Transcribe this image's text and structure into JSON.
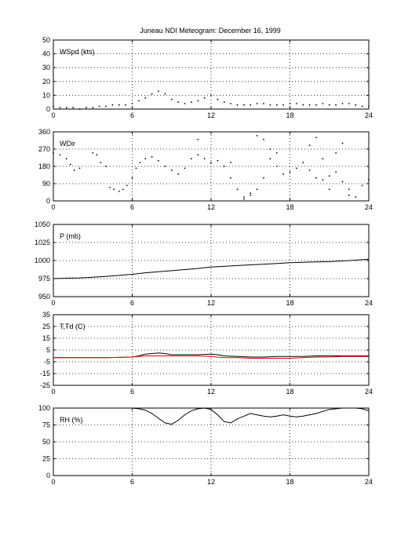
{
  "figure": {
    "title": "Juneau NDI Meteogram:  December 16, 1999"
  },
  "chart_data": [
    {
      "type": "line",
      "label": "WSpd (kts)",
      "x_ticks": [
        0,
        6,
        12,
        18,
        24
      ],
      "y_ticks": [
        0,
        10,
        20,
        30,
        40,
        50
      ],
      "xlim": [
        0,
        24
      ],
      "ylim": [
        0,
        50
      ],
      "grid": true,
      "series": [
        {
          "color": "#000000",
          "style": "dots",
          "x": [
            0,
            0.5,
            1,
            1.5,
            2,
            2.5,
            3,
            3.5,
            4,
            4.5,
            5,
            5.5,
            6,
            6.5,
            7,
            7.5,
            8,
            8.5,
            9,
            9.5,
            10,
            10.5,
            11,
            11.5,
            12,
            12.5,
            13,
            13.5,
            14,
            14.5,
            15,
            15.5,
            16,
            16.5,
            17,
            17.5,
            18,
            18.5,
            19,
            19.5,
            20,
            20.5,
            21,
            21.5,
            22,
            22.5,
            23,
            23.5,
            24
          ],
          "y": [
            2,
            1,
            1,
            1,
            0,
            1,
            1,
            2,
            2,
            3,
            3,
            3,
            4,
            6,
            8,
            11,
            13,
            11,
            7,
            5,
            4,
            5,
            6,
            8,
            10,
            7,
            5,
            4,
            3,
            3,
            3,
            4,
            4,
            3,
            3,
            3,
            4,
            4,
            3,
            3,
            3,
            4,
            3,
            3,
            4,
            4,
            3,
            2,
            2
          ]
        }
      ]
    },
    {
      "type": "scatter",
      "label": "WDir",
      "x_ticks": [
        0,
        6,
        12,
        18,
        24
      ],
      "y_ticks": [
        0,
        90,
        180,
        270,
        360
      ],
      "xlim": [
        0,
        24
      ],
      "ylim": [
        0,
        360
      ],
      "grid": true,
      "series": [
        {
          "color": "#000000",
          "style": "dots",
          "x": [
            0,
            0.5,
            1,
            1.3,
            1.6,
            2,
            3,
            3.3,
            3.6,
            4,
            4.3,
            4.6,
            5,
            5.3,
            5.6,
            6,
            6.3,
            6.6,
            7,
            7.5,
            8,
            8.5,
            9,
            9.5,
            10,
            10.5,
            11,
            11.5,
            12,
            12.5,
            13,
            13.5,
            14,
            14.5,
            15,
            15.5,
            16,
            16.5,
            17,
            17.5,
            18,
            18.5,
            19,
            19.5,
            20,
            20.5,
            21,
            21.5,
            22,
            22.5,
            23,
            23.5,
            24
          ],
          "y": [
            250,
            240,
            220,
            190,
            160,
            170,
            250,
            240,
            200,
            180,
            70,
            60,
            50,
            60,
            80,
            120,
            170,
            200,
            220,
            230,
            210,
            180,
            160,
            140,
            170,
            220,
            240,
            220,
            200,
            210,
            180,
            120,
            60,
            20,
            30,
            60,
            120,
            220,
            180,
            140,
            150,
            170,
            200,
            160,
            120,
            110,
            130,
            150,
            100,
            60,
            20,
            80,
            110
          ]
        },
        {
          "color": "#000000",
          "style": "dots",
          "x": [
            11,
            13.5,
            14.5,
            15,
            15.5,
            16,
            16.5,
            17,
            19.5,
            20,
            20.5,
            21,
            21.5,
            22,
            22.5
          ],
          "y": [
            320,
            200,
            10,
            40,
            340,
            320,
            270,
            250,
            290,
            330,
            220,
            60,
            250,
            300,
            30
          ]
        }
      ]
    },
    {
      "type": "line",
      "label": "P (mb)",
      "x_ticks": [
        0,
        6,
        12,
        18,
        24
      ],
      "y_ticks": [
        950,
        975,
        1000,
        1025,
        1050
      ],
      "xlim": [
        0,
        24
      ],
      "ylim": [
        950,
        1050
      ],
      "grid": true,
      "series": [
        {
          "color": "#000000",
          "style": "line",
          "x": [
            0,
            1,
            2,
            3,
            4,
            5,
            6,
            7,
            8,
            9,
            10,
            11,
            12,
            13,
            14,
            15,
            16,
            17,
            18,
            19,
            20,
            21,
            22,
            23,
            24
          ],
          "y": [
            975,
            975.5,
            976,
            977,
            978,
            979.5,
            981,
            983,
            984.5,
            986,
            987.5,
            989,
            991,
            992,
            993,
            994,
            995,
            996,
            997,
            997.5,
            998,
            998.5,
            999.5,
            1000.5,
            1002
          ]
        }
      ]
    },
    {
      "type": "line",
      "label": "T,Td (C)",
      "x_ticks": [
        0,
        6,
        12,
        18,
        24
      ],
      "y_ticks": [
        -25,
        -15,
        -5,
        5,
        15,
        25,
        35
      ],
      "xlim": [
        0,
        24
      ],
      "ylim": [
        -25,
        35
      ],
      "grid": true,
      "series": [
        {
          "color": "#000000",
          "style": "line",
          "x": [
            0,
            2,
            4,
            6,
            6.5,
            7,
            7.5,
            8,
            8.5,
            9,
            9.5,
            10,
            11,
            12,
            12.5,
            13,
            14,
            15,
            16,
            17,
            18,
            19,
            20,
            21,
            22,
            23,
            24
          ],
          "y": [
            -1.5,
            -1.5,
            -1.5,
            -1,
            0,
            1.5,
            2,
            2.5,
            2,
            1,
            1,
            1,
            1,
            1.5,
            1,
            0,
            -0.5,
            -1,
            -1,
            -0.5,
            -0.5,
            -0.5,
            0,
            0,
            0,
            0,
            0
          ]
        },
        {
          "color": "#ff0000",
          "style": "line",
          "x": [
            0,
            2,
            4,
            6,
            6.5,
            7,
            7.5,
            8,
            8.5,
            9,
            9.5,
            10,
            11,
            12,
            12.5,
            13,
            14,
            15,
            16,
            17,
            18,
            19,
            20,
            21,
            22,
            23,
            24
          ],
          "y": [
            -1.5,
            -1.5,
            -1.5,
            -1,
            -0.5,
            0,
            0,
            0,
            0,
            0,
            0,
            0,
            0,
            -0.5,
            -1,
            -1.5,
            -1.5,
            -2,
            -2,
            -2,
            -2,
            -1.5,
            -1,
            -1,
            -0.5,
            -0.5,
            -0.5
          ]
        }
      ]
    },
    {
      "type": "line",
      "label": "RH (%)",
      "x_ticks": [
        0,
        6,
        12,
        18,
        24
      ],
      "y_ticks": [
        0,
        25,
        50,
        75,
        100
      ],
      "xlim": [
        0,
        24
      ],
      "ylim": [
        0,
        100
      ],
      "grid": true,
      "series": [
        {
          "color": "#000000",
          "style": "line",
          "x": [
            6,
            6.5,
            7,
            7.5,
            8,
            8.5,
            9,
            9.5,
            10,
            10.5,
            11,
            11.5,
            12,
            12.5,
            13,
            13.5,
            14,
            14.5,
            15,
            15.5,
            16,
            16.5,
            17,
            17.5,
            18,
            18.5,
            19,
            19.5,
            20,
            20.5,
            21,
            21.5,
            22,
            22.5,
            23,
            23.5,
            24
          ],
          "y": [
            100,
            99,
            97,
            92,
            85,
            78,
            76,
            82,
            90,
            96,
            99,
            100,
            98,
            90,
            80,
            78,
            84,
            88,
            92,
            90,
            88,
            87,
            88,
            90,
            88,
            87,
            88,
            90,
            92,
            95,
            98,
            99,
            100,
            100,
            100,
            99,
            96
          ]
        }
      ]
    }
  ]
}
